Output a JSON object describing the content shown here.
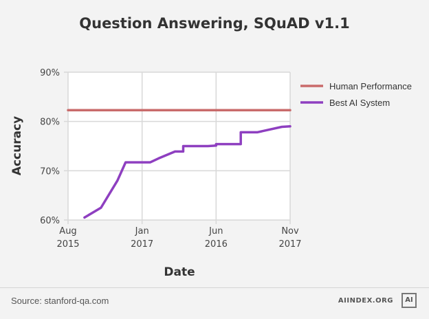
{
  "title": "Question Answering, SQuAD v1.1",
  "footer": {
    "source": "Source: stanford-qa.com",
    "brand": "AIINDEX.ORG",
    "logo_text": "AI"
  },
  "chart_data": {
    "type": "line",
    "title": "Question Answering, SQuAD v1.1",
    "xlabel": "Date",
    "ylabel": "Accuracy",
    "ylim": [
      60,
      90
    ],
    "xlim": [
      "2015-08",
      "2017-11"
    ],
    "grid": true,
    "legend_position": "right",
    "y_ticks": [
      "60%",
      "70%",
      "80%",
      "90%"
    ],
    "x_ticks": [
      {
        "month": "Aug",
        "year": "2015"
      },
      {
        "month": "Jan",
        "year": "2017"
      },
      {
        "month": "Jun",
        "year": "2016"
      },
      {
        "month": "Nov",
        "year": "2017"
      }
    ],
    "series": [
      {
        "name": "Human Performance",
        "color": "#c96b6b",
        "x": [
          "2015-08",
          "2017-11"
        ],
        "y": [
          82.3,
          82.3
        ]
      },
      {
        "name": "Best AI System",
        "color": "#8e3fc0",
        "x": [
          "2015-10",
          "2015-12",
          "2016-02",
          "2016-03",
          "2016-06",
          "2016-07",
          "2016-09",
          "2016-10",
          "2016-10",
          "2017-01",
          "2017-02",
          "2017-02",
          "2017-04",
          "2017-05",
          "2017-05",
          "2017-07",
          "2017-10",
          "2017-11"
        ],
        "y": [
          60.5,
          62.5,
          68.0,
          71.7,
          71.7,
          72.5,
          73.9,
          73.9,
          75.0,
          75.0,
          75.1,
          75.4,
          75.4,
          75.4,
          77.8,
          77.8,
          78.9,
          79.0
        ]
      }
    ]
  }
}
